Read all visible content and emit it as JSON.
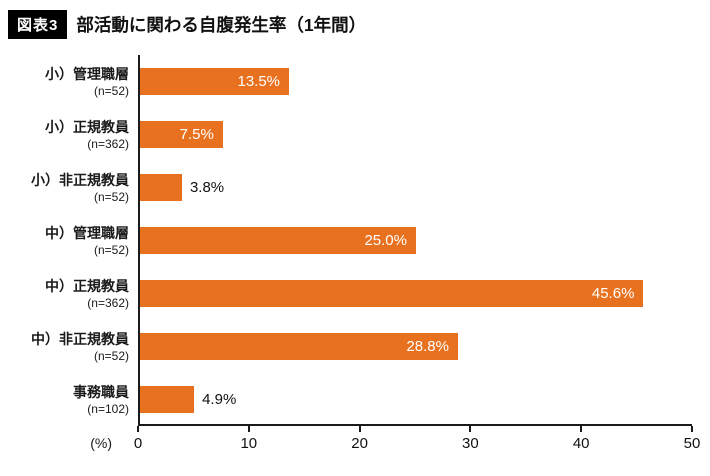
{
  "header": {
    "tag": "図表3",
    "title": "部活動に関わる自腹発生率（1年間）"
  },
  "chart_data": {
    "type": "bar",
    "orientation": "horizontal",
    "title": "部活動に関わる自腹発生率（1年間）",
    "rows": [
      {
        "label": "小）管理職層",
        "n": "(n=52)",
        "value": 13.5,
        "value_label": "13.5%"
      },
      {
        "label": "小）正規教員",
        "n": "(n=362)",
        "value": 7.5,
        "value_label": "7.5%"
      },
      {
        "label": "小）非正規教員",
        "n": "(n=52)",
        "value": 3.8,
        "value_label": "3.8%"
      },
      {
        "label": "中）管理職層",
        "n": "(n=52)",
        "value": 25.0,
        "value_label": "25.0%"
      },
      {
        "label": "中）正規教員",
        "n": "(n=362)",
        "value": 45.6,
        "value_label": "45.6%"
      },
      {
        "label": "中）非正規教員",
        "n": "(n=52)",
        "value": 28.8,
        "value_label": "28.8%"
      },
      {
        "label": "事務職員",
        "n": "(n=102)",
        "value": 4.9,
        "value_label": "4.9%"
      }
    ],
    "xlim": [
      0,
      50
    ],
    "x_ticks": [
      0,
      10,
      20,
      30,
      40,
      50
    ],
    "x_unit_label": "(%)",
    "bar_color": "#e8711f",
    "grid": false,
    "legend": false,
    "inside_label_threshold": 7
  }
}
